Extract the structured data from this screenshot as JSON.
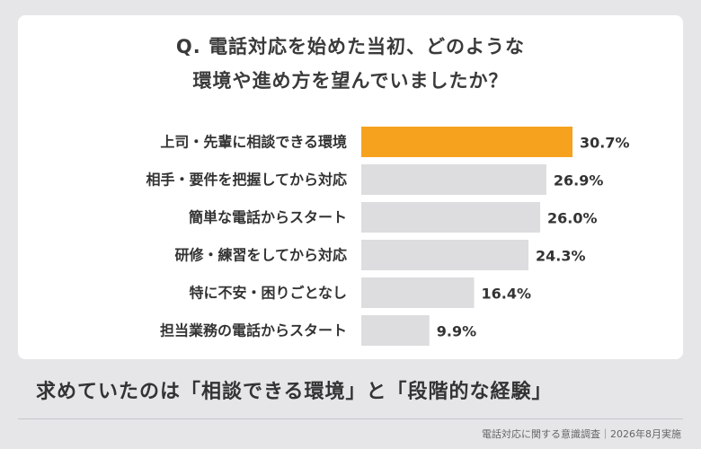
{
  "chart_data": {
    "type": "bar",
    "orientation": "horizontal",
    "title_lines": [
      "Q. 電話対応を始めた当初、どのような",
      "環境や進め方を望んでいましたか？"
    ],
    "categories": [
      "上司・先輩に相談できる環境",
      "相手・要件を把握してから対応",
      "簡単な電話からスタート",
      "研修・練習をしてから対応",
      "特に不安・困りごとなし",
      "担当業務の電話からスタート"
    ],
    "values": [
      30.7,
      26.9,
      26.0,
      24.3,
      16.4,
      9.9
    ],
    "value_labels": [
      "30.7%",
      "26.9%",
      "26.0%",
      "24.3%",
      "16.4%",
      "9.9%"
    ],
    "unit": "%",
    "xlim": [
      0,
      30.7
    ],
    "highlight_index": 0,
    "colors": {
      "highlight": "#f7a21f",
      "default": "#dddcdf"
    },
    "grid": false,
    "legend": "none"
  },
  "conclusion": "求めていたのは「相談できる環境」と「段階的な経験」",
  "source": "電話対応に関する意識調査｜2026年8月実施"
}
